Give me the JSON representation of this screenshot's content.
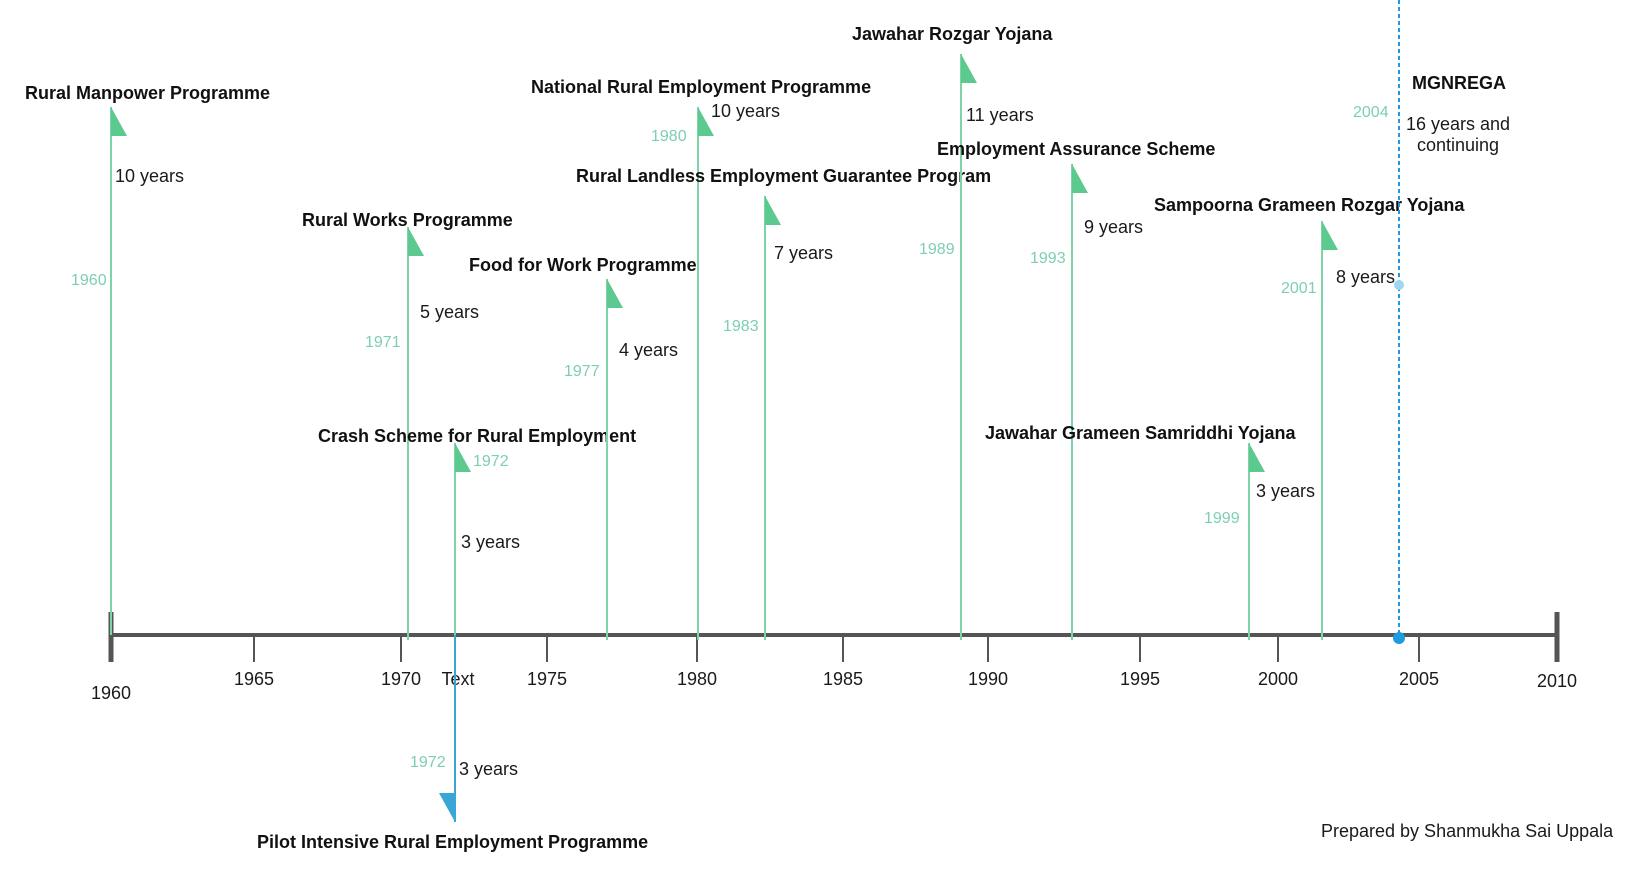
{
  "colors": {
    "axis": "#555555",
    "flag_up": "#5cc98e",
    "stem_up": "#7ed4a6",
    "flag_down": "#3aa6d6",
    "year_label": "#7dcfb0",
    "marker": "#1e9be0",
    "marker_light": "#9fd6f2"
  },
  "axis": {
    "ticks": [
      "1960",
      "1965",
      "1970",
      "1975",
      "1980",
      "1985",
      "1990",
      "1995",
      "2000",
      "2005",
      "2010"
    ],
    "extra_label": "Text"
  },
  "events": [
    {
      "id": "rural-manpower",
      "title": "Rural Manpower Programme",
      "duration": "10 years",
      "year_label": "1960"
    },
    {
      "id": "rural-works",
      "title": "Rural Works Programme",
      "duration": "5 years",
      "year_label": "1971"
    },
    {
      "id": "crash-scheme",
      "title": "Crash Scheme for Rural Employment",
      "duration": "3 years",
      "year_label": "1972"
    },
    {
      "id": "food-for-work",
      "title": "Food for Work Programme",
      "duration": "4 years",
      "year_label": "1977"
    },
    {
      "id": "nrep",
      "title": "National Rural Employment Programme",
      "duration": "10 years",
      "year_label": "1980"
    },
    {
      "id": "rlegp",
      "title": "Rural Landless Employment Guarantee Program",
      "duration": "7 years",
      "year_label": "1983"
    },
    {
      "id": "jry",
      "title": "Jawahar Rozgar Yojana",
      "duration": "11 years",
      "year_label": "1989"
    },
    {
      "id": "eas",
      "title": "Employment Assurance Scheme",
      "duration": "9 years",
      "year_label": "1993"
    },
    {
      "id": "jgsy",
      "title": "Jawahar Grameen Samriddhi Yojana",
      "duration": "3 years",
      "year_label": "1999"
    },
    {
      "id": "sgry",
      "title": "Sampoorna Grameen Rozgar Yojana",
      "duration": "8 years",
      "year_label": "2001"
    },
    {
      "id": "pirep",
      "title": "Pilot Intensive Rural Employment Programme",
      "duration": "3 years",
      "year_label": "1972"
    }
  ],
  "mgnrega": {
    "title": "MGNREGA",
    "duration_line1": "16 years and",
    "duration_line2": "continuing",
    "year_label": "2004"
  },
  "credit": "Prepared by Shanmukha Sai Uppala"
}
